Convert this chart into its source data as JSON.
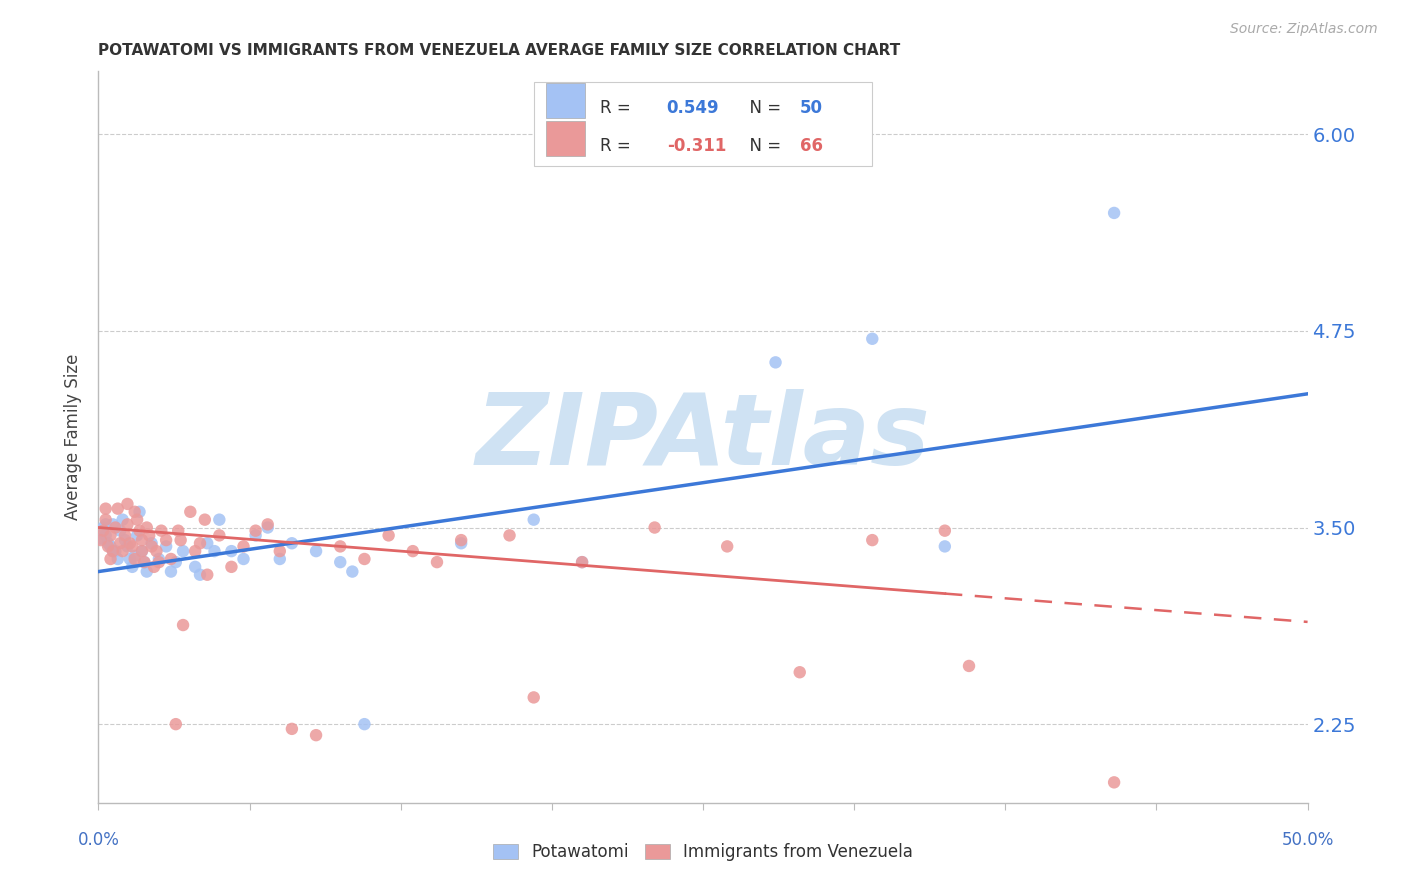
{
  "title": "POTAWATOMI VS IMMIGRANTS FROM VENEZUELA AVERAGE FAMILY SIZE CORRELATION CHART",
  "source": "Source: ZipAtlas.com",
  "ylabel": "Average Family Size",
  "yticks": [
    2.25,
    3.5,
    4.75,
    6.0
  ],
  "ylim": [
    1.75,
    6.4
  ],
  "xlim": [
    0.0,
    0.5
  ],
  "legend_blue_r": "0.549",
  "legend_blue_n": "50",
  "legend_pink_r": "-0.311",
  "legend_pink_n": "66",
  "blue_color": "#a4c2f4",
  "pink_color": "#ea9999",
  "blue_line_color": "#3c78d8",
  "pink_line_color": "#e06666",
  "right_tick_color": "#3c78d8",
  "watermark_text": "ZIPAtlas",
  "watermark_color": "#cfe2f3",
  "axis_color": "#bbbbbb",
  "grid_color": "#cccccc",
  "blue_scatter": [
    [
      0.001,
      3.43
    ],
    [
      0.002,
      3.5
    ],
    [
      0.003,
      3.45
    ],
    [
      0.003,
      3.52
    ],
    [
      0.004,
      3.4
    ],
    [
      0.005,
      3.38
    ],
    [
      0.006,
      3.52
    ],
    [
      0.006,
      3.35
    ],
    [
      0.007,
      3.35
    ],
    [
      0.008,
      3.3
    ],
    [
      0.009,
      3.48
    ],
    [
      0.01,
      3.55
    ],
    [
      0.011,
      3.42
    ],
    [
      0.012,
      3.38
    ],
    [
      0.013,
      3.3
    ],
    [
      0.014,
      3.25
    ],
    [
      0.015,
      3.32
    ],
    [
      0.016,
      3.45
    ],
    [
      0.017,
      3.6
    ],
    [
      0.018,
      3.35
    ],
    [
      0.019,
      3.28
    ],
    [
      0.02,
      3.22
    ],
    [
      0.022,
      3.4
    ],
    [
      0.025,
      3.3
    ],
    [
      0.028,
      3.38
    ],
    [
      0.03,
      3.22
    ],
    [
      0.032,
      3.28
    ],
    [
      0.035,
      3.35
    ],
    [
      0.04,
      3.25
    ],
    [
      0.042,
      3.2
    ],
    [
      0.045,
      3.4
    ],
    [
      0.048,
      3.35
    ],
    [
      0.05,
      3.55
    ],
    [
      0.055,
      3.35
    ],
    [
      0.06,
      3.3
    ],
    [
      0.065,
      3.45
    ],
    [
      0.07,
      3.5
    ],
    [
      0.075,
      3.3
    ],
    [
      0.08,
      3.4
    ],
    [
      0.09,
      3.35
    ],
    [
      0.1,
      3.28
    ],
    [
      0.105,
      3.22
    ],
    [
      0.11,
      2.25
    ],
    [
      0.15,
      3.4
    ],
    [
      0.18,
      3.55
    ],
    [
      0.2,
      3.28
    ],
    [
      0.28,
      4.55
    ],
    [
      0.32,
      4.7
    ],
    [
      0.35,
      3.38
    ],
    [
      0.42,
      5.5
    ]
  ],
  "pink_scatter": [
    [
      0.001,
      3.42
    ],
    [
      0.002,
      3.48
    ],
    [
      0.003,
      3.55
    ],
    [
      0.003,
      3.62
    ],
    [
      0.004,
      3.38
    ],
    [
      0.005,
      3.45
    ],
    [
      0.005,
      3.3
    ],
    [
      0.006,
      3.35
    ],
    [
      0.007,
      3.5
    ],
    [
      0.008,
      3.62
    ],
    [
      0.009,
      3.4
    ],
    [
      0.01,
      3.35
    ],
    [
      0.011,
      3.45
    ],
    [
      0.012,
      3.52
    ],
    [
      0.012,
      3.65
    ],
    [
      0.013,
      3.4
    ],
    [
      0.014,
      3.38
    ],
    [
      0.015,
      3.3
    ],
    [
      0.015,
      3.6
    ],
    [
      0.016,
      3.55
    ],
    [
      0.017,
      3.48
    ],
    [
      0.018,
      3.35
    ],
    [
      0.018,
      3.42
    ],
    [
      0.019,
      3.28
    ],
    [
      0.02,
      3.5
    ],
    [
      0.021,
      3.45
    ],
    [
      0.022,
      3.38
    ],
    [
      0.023,
      3.25
    ],
    [
      0.024,
      3.35
    ],
    [
      0.025,
      3.28
    ],
    [
      0.026,
      3.48
    ],
    [
      0.028,
      3.42
    ],
    [
      0.03,
      3.3
    ],
    [
      0.032,
      2.25
    ],
    [
      0.033,
      3.48
    ],
    [
      0.034,
      3.42
    ],
    [
      0.035,
      2.88
    ],
    [
      0.038,
      3.6
    ],
    [
      0.04,
      3.35
    ],
    [
      0.042,
      3.4
    ],
    [
      0.044,
      3.55
    ],
    [
      0.045,
      3.2
    ],
    [
      0.05,
      3.45
    ],
    [
      0.055,
      3.25
    ],
    [
      0.06,
      3.38
    ],
    [
      0.065,
      3.48
    ],
    [
      0.07,
      3.52
    ],
    [
      0.075,
      3.35
    ],
    [
      0.08,
      2.22
    ],
    [
      0.09,
      2.18
    ],
    [
      0.1,
      3.38
    ],
    [
      0.11,
      3.3
    ],
    [
      0.12,
      3.45
    ],
    [
      0.13,
      3.35
    ],
    [
      0.14,
      3.28
    ],
    [
      0.15,
      3.42
    ],
    [
      0.17,
      3.45
    ],
    [
      0.18,
      2.42
    ],
    [
      0.2,
      3.28
    ],
    [
      0.23,
      3.5
    ],
    [
      0.26,
      3.38
    ],
    [
      0.29,
      2.58
    ],
    [
      0.32,
      3.42
    ],
    [
      0.35,
      3.48
    ],
    [
      0.36,
      2.62
    ],
    [
      0.42,
      1.88
    ]
  ],
  "blue_line": [
    [
      0.0,
      3.22
    ],
    [
      0.5,
      4.35
    ]
  ],
  "pink_line_solid": [
    [
      0.0,
      3.5
    ],
    [
      0.35,
      3.08
    ]
  ],
  "pink_line_dashed": [
    [
      0.35,
      3.08
    ],
    [
      0.5,
      2.9
    ]
  ]
}
